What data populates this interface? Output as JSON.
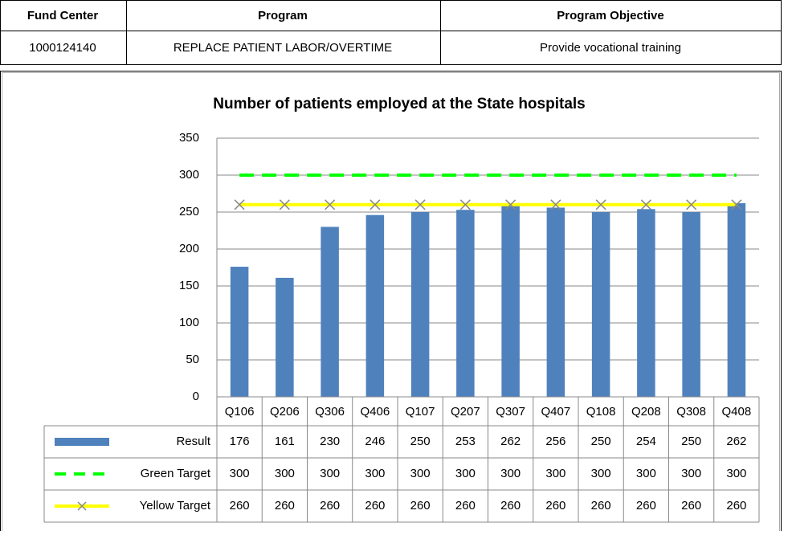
{
  "header_table": {
    "columns": [
      "Fund Center",
      "Program",
      "Program Objective"
    ],
    "rows": [
      [
        "1000124140",
        "REPLACE PATIENT LABOR/OVERTIME",
        "Provide vocational training"
      ]
    ]
  },
  "chart_data": {
    "type": "bar",
    "title": "Number of patients employed at the State hospitals",
    "categories": [
      "Q106",
      "Q206",
      "Q306",
      "Q406",
      "Q107",
      "Q207",
      "Q307",
      "Q407",
      "Q108",
      "Q208",
      "Q308",
      "Q408"
    ],
    "series": [
      {
        "name": "Result",
        "type": "bar",
        "color": "#4f81bd",
        "values": [
          176,
          161,
          230,
          246,
          250,
          253,
          262,
          256,
          250,
          254,
          250,
          262
        ]
      },
      {
        "name": "Green Target",
        "type": "line",
        "color": "#00ff00",
        "dashed": true,
        "values": [
          300,
          300,
          300,
          300,
          300,
          300,
          300,
          300,
          300,
          300,
          300,
          300
        ]
      },
      {
        "name": "Yellow Target",
        "type": "line",
        "color": "#ffff00",
        "marker": "x",
        "values": [
          260,
          260,
          260,
          260,
          260,
          260,
          260,
          260,
          260,
          260,
          260,
          260
        ]
      }
    ],
    "ylim": [
      0,
      350
    ],
    "yticks": [
      0,
      50,
      100,
      150,
      200,
      250,
      300,
      350
    ],
    "grid": true,
    "data_table": true
  }
}
